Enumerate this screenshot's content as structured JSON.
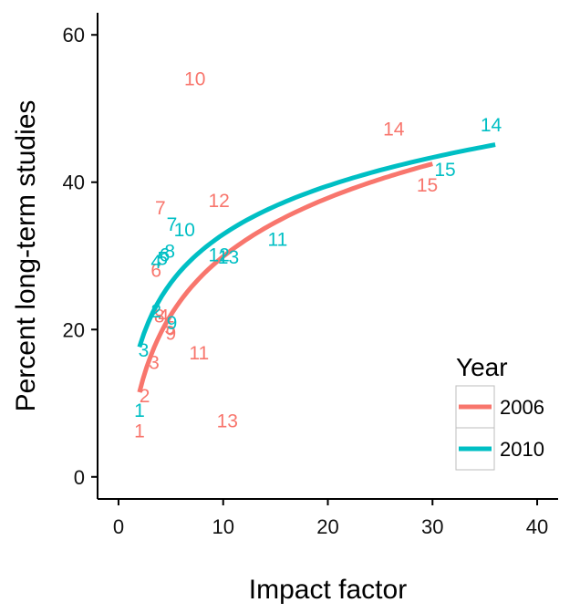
{
  "chart_data": {
    "type": "scatter",
    "xlabel": "Impact factor",
    "ylabel": "Percent long-term studies",
    "xlim": [
      -2,
      42
    ],
    "ylim": [
      -3,
      63
    ],
    "xticks": [
      0,
      10,
      20,
      30,
      40
    ],
    "yticks": [
      0,
      20,
      40,
      60
    ],
    "grid": false,
    "legend": {
      "title": "Year",
      "placement": "bottom-right",
      "entries": [
        "2006",
        "2010"
      ]
    },
    "series": [
      {
        "name": "2006",
        "color": "#F8766D",
        "points": [
          {
            "label": "1",
            "x": 2.0,
            "y": 6.2
          },
          {
            "label": "2",
            "x": 2.5,
            "y": 11.0
          },
          {
            "label": "3",
            "x": 3.4,
            "y": 15.5
          },
          {
            "label": "4",
            "x": 4.3,
            "y": 21.8
          },
          {
            "label": "5",
            "x": 4.9,
            "y": 20.2
          },
          {
            "label": "6",
            "x": 3.6,
            "y": 28.0
          },
          {
            "label": "7",
            "x": 4.0,
            "y": 36.5
          },
          {
            "label": "8",
            "x": 3.9,
            "y": 21.8
          },
          {
            "label": "9",
            "x": 5.0,
            "y": 19.5
          },
          {
            "label": "10",
            "x": 7.3,
            "y": 54.0
          },
          {
            "label": "11",
            "x": 7.7,
            "y": 16.8
          },
          {
            "label": "12",
            "x": 9.6,
            "y": 37.5
          },
          {
            "label": "13",
            "x": 10.4,
            "y": 7.6
          },
          {
            "label": "14",
            "x": 26.3,
            "y": 47.2
          },
          {
            "label": "15",
            "x": 29.5,
            "y": 39.6
          }
        ]
      },
      {
        "name": "2010",
        "color": "#00BFC4",
        "points": [
          {
            "label": "1",
            "x": 2.0,
            "y": 9.0
          },
          {
            "label": "2",
            "x": 3.6,
            "y": 22.5
          },
          {
            "label": "3",
            "x": 2.4,
            "y": 17.2
          },
          {
            "label": "4",
            "x": 3.6,
            "y": 29.2
          },
          {
            "label": "5",
            "x": 4.2,
            "y": 29.6
          },
          {
            "label": "6",
            "x": 4.4,
            "y": 30.1
          },
          {
            "label": "7",
            "x": 5.1,
            "y": 34.3
          },
          {
            "label": "8",
            "x": 4.9,
            "y": 30.6
          },
          {
            "label": "9",
            "x": 5.1,
            "y": 20.9
          },
          {
            "label": "10",
            "x": 6.3,
            "y": 33.5
          },
          {
            "label": "11",
            "x": 15.2,
            "y": 32.2
          },
          {
            "label": "12",
            "x": 9.6,
            "y": 30.1
          },
          {
            "label": "13",
            "x": 10.5,
            "y": 29.8
          },
          {
            "label": "14",
            "x": 35.6,
            "y": 47.8
          },
          {
            "label": "15",
            "x": 31.2,
            "y": 41.7
          }
        ]
      }
    ],
    "fits": [
      {
        "name": "2006",
        "color": "#F8766D",
        "x_range": [
          2,
          30
        ],
        "a": 3.55,
        "b": 11.45
      },
      {
        "name": "2010",
        "color": "#00BFC4",
        "x_range": [
          2,
          36
        ],
        "a": 11.05,
        "b": 9.5
      }
    ]
  }
}
